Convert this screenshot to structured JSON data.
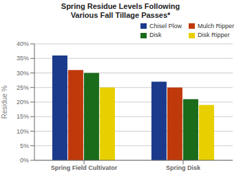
{
  "chart_data": {
    "type": "bar",
    "title": "Spring Residue Levels Following\nVarious Fall Tillage Passes*",
    "y_label": "Residue %",
    "categories": [
      "Spring Field Cultivator",
      "Spring Disk"
    ],
    "series": [
      {
        "name": "Chisel Plow",
        "color": "#1B3A8C",
        "values": [
          36,
          27
        ]
      },
      {
        "name": "Mulch Ripper",
        "color": "#C0390B",
        "values": [
          31,
          25
        ]
      },
      {
        "name": "Disk",
        "color": "#1A6B1A",
        "values": [
          30,
          21
        ]
      },
      {
        "name": "Disk Ripper",
        "color": "#E8D000",
        "values": [
          25,
          19
        ]
      }
    ],
    "ylim": [
      0,
      40
    ],
    "yticks": [
      {
        "value": 0,
        "label": "0%"
      },
      {
        "value": 5,
        "label": "5%"
      },
      {
        "value": 10,
        "label": "10%"
      },
      {
        "value": 15,
        "label": "15%"
      },
      {
        "value": 20,
        "label": "20%"
      },
      {
        "value": 25,
        "label": "25%"
      },
      {
        "value": 30,
        "label": "30%"
      },
      {
        "value": 35,
        "label": "35%"
      },
      {
        "value": 40,
        "label": "40%"
      }
    ],
    "grid": true,
    "legend": "upper right"
  }
}
